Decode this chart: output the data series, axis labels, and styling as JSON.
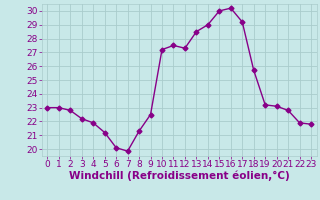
{
  "x": [
    0,
    1,
    2,
    3,
    4,
    5,
    6,
    7,
    8,
    9,
    10,
    11,
    12,
    13,
    14,
    15,
    16,
    17,
    18,
    19,
    20,
    21,
    22,
    23
  ],
  "y": [
    23,
    23,
    22.8,
    22.2,
    21.9,
    21.2,
    20.1,
    19.85,
    21.3,
    22.5,
    27.2,
    27.5,
    27.3,
    28.5,
    29.0,
    30.0,
    30.2,
    29.2,
    25.7,
    23.2,
    23.1,
    22.8,
    21.9,
    21.8
  ],
  "line_color": "#880088",
  "marker": "D",
  "marker_size": 2.5,
  "bg_color": "#c8e8e8",
  "grid_color": "#aacccc",
  "xlabel": "Windchill (Refroidissement éolien,°C)",
  "xlabel_color": "#880088",
  "xlabel_fontsize": 7.5,
  "tick_color": "#880088",
  "tick_fontsize": 6.5,
  "ylim": [
    19.5,
    30.5
  ],
  "yticks": [
    20,
    21,
    22,
    23,
    24,
    25,
    26,
    27,
    28,
    29,
    30
  ],
  "xlim": [
    -0.5,
    23.5
  ],
  "xticks": [
    0,
    1,
    2,
    3,
    4,
    5,
    6,
    7,
    8,
    9,
    10,
    11,
    12,
    13,
    14,
    15,
    16,
    17,
    18,
    19,
    20,
    21,
    22,
    23
  ],
  "line_width": 1.0
}
